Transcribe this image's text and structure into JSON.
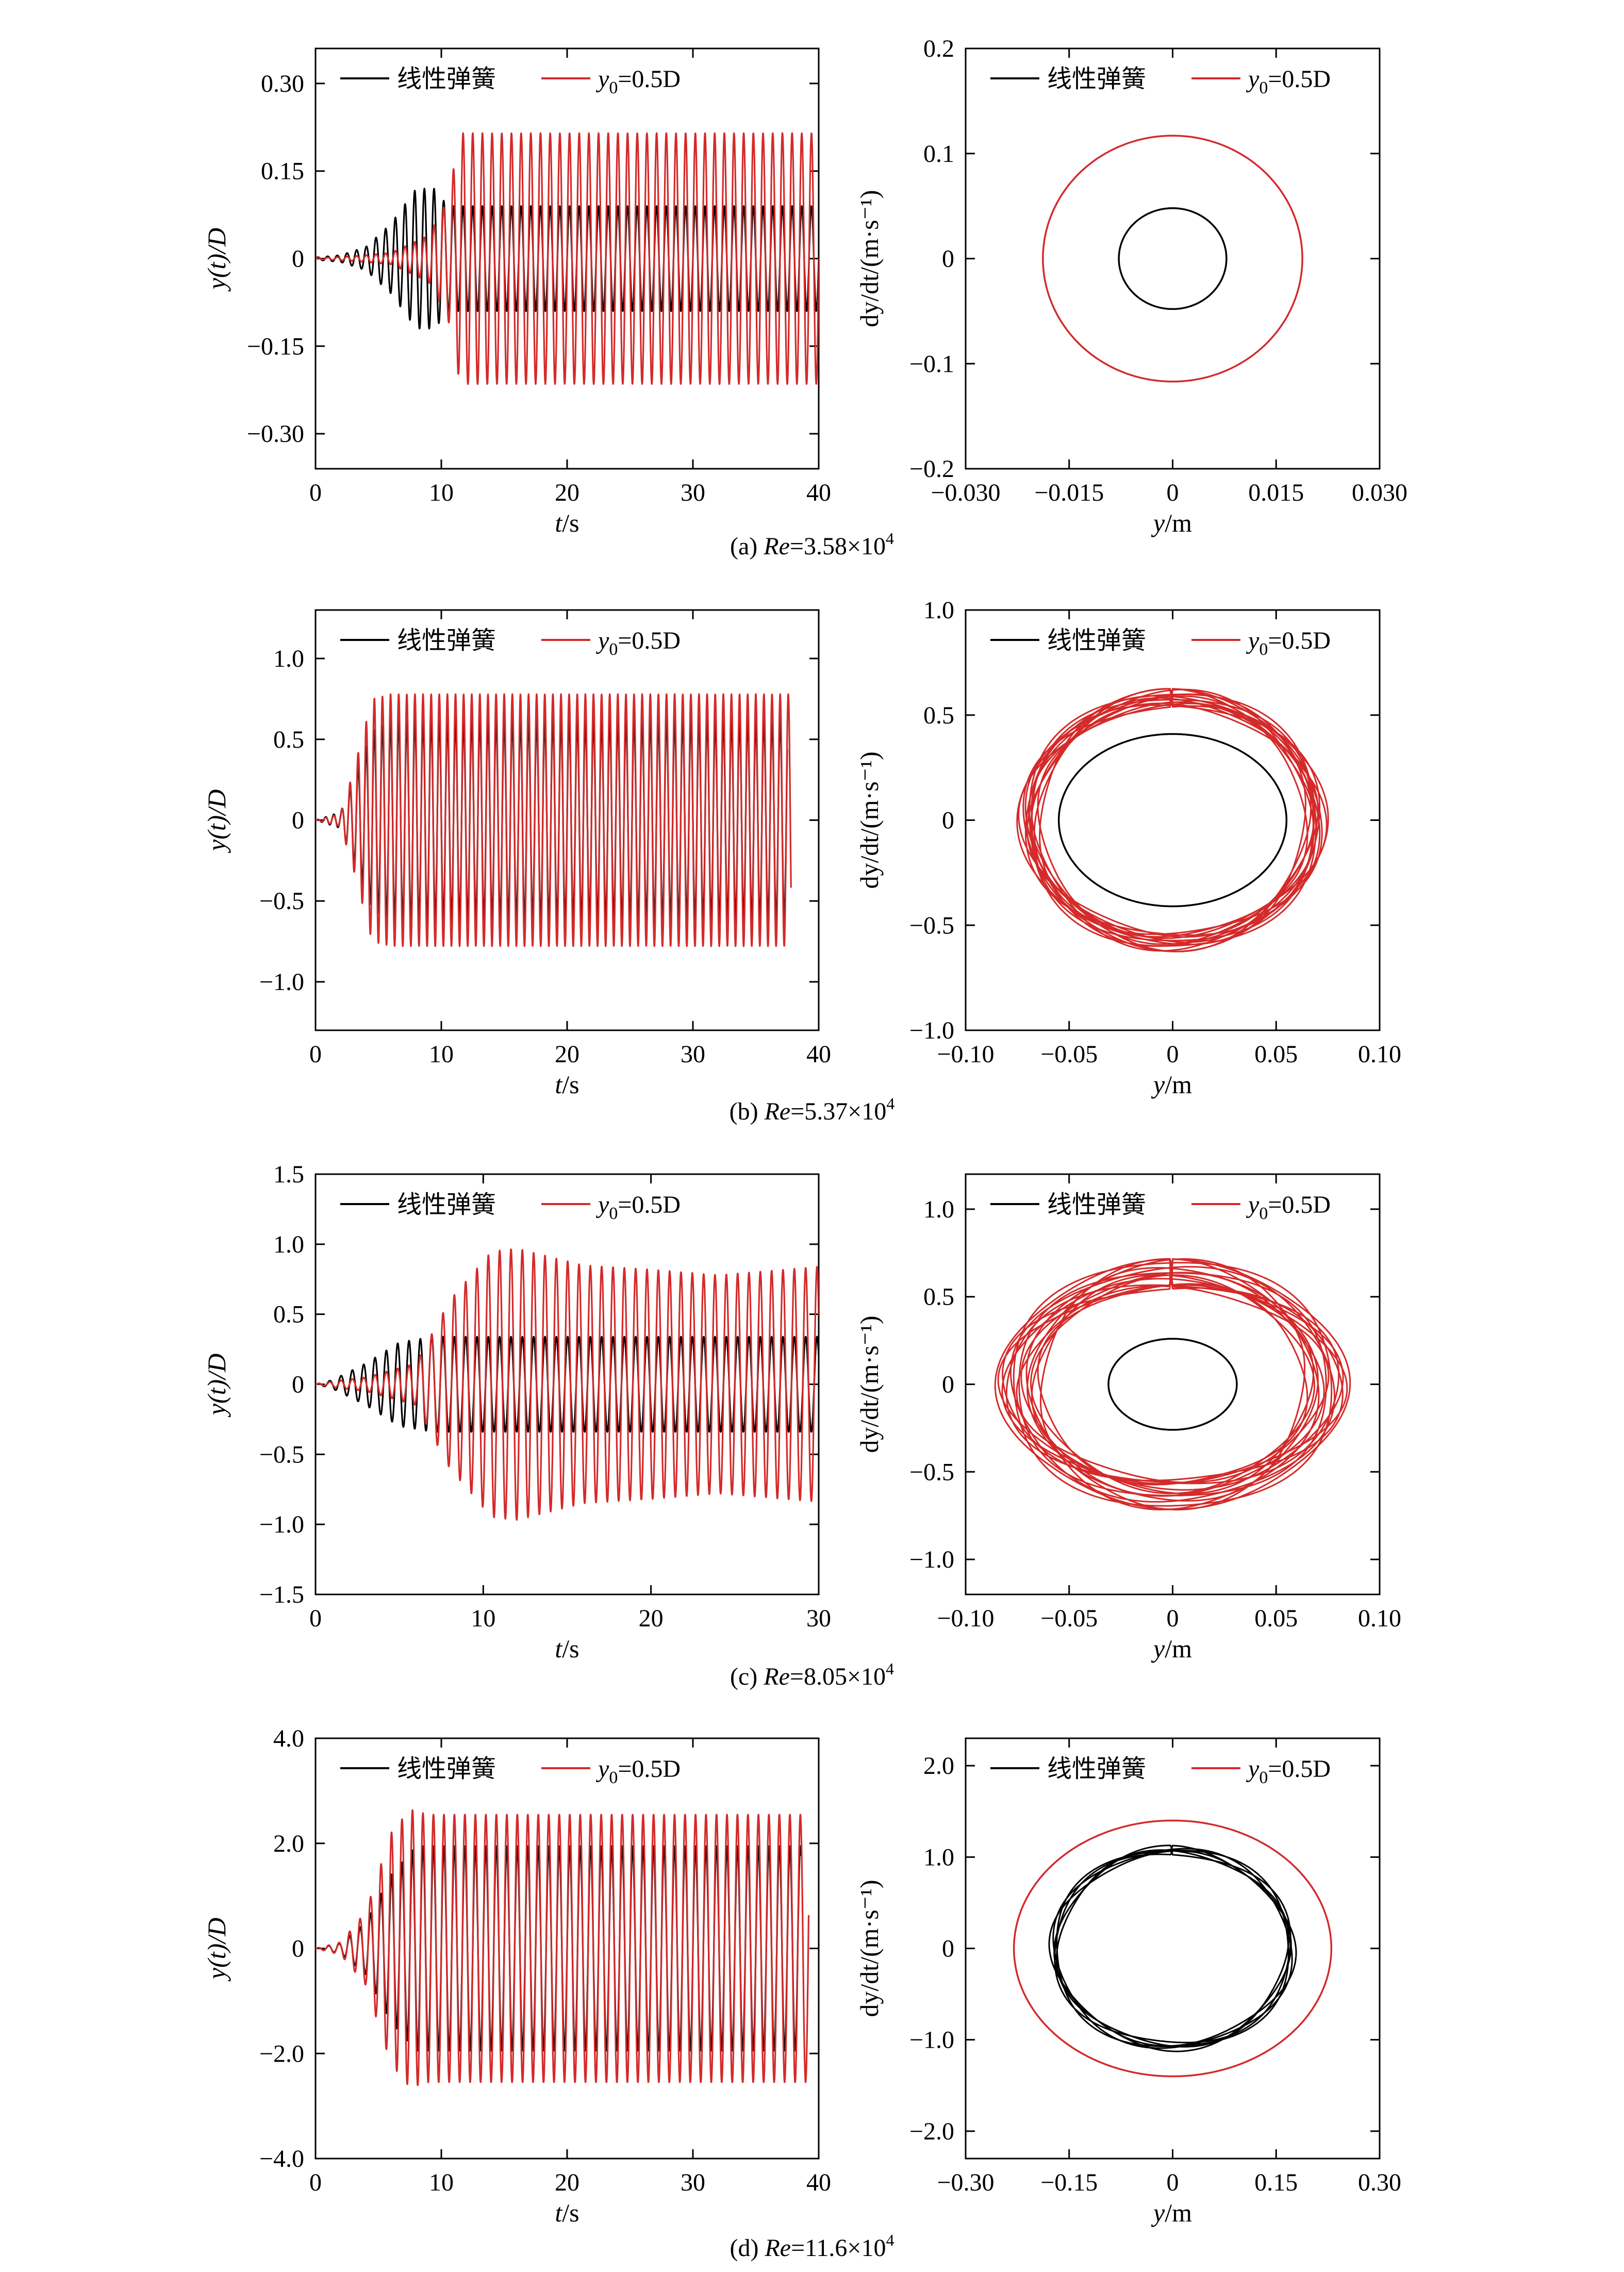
{
  "colors": {
    "linear": "#000000",
    "nonlinear": "#d42a2a",
    "axis": "#000000"
  },
  "legend": {
    "linear_label": "线性弹簧",
    "nonlinear_prefix": "y",
    "nonlinear_sub": "0",
    "nonlinear_suffix": "=0.5D"
  },
  "panels": [
    {
      "caption": {
        "prefix": "(a) ",
        "re": "Re",
        "value": "=3.58×10",
        "exp": "4"
      },
      "time": {
        "xlabel_var": "t",
        "xlabel_unit": "/s",
        "ylabel": "y(t)/D",
        "xlim": [
          0,
          40
        ],
        "ylim": [
          -0.36,
          0.36
        ],
        "xticks": [
          0,
          10,
          20,
          30,
          40
        ],
        "xtick_labels": [
          "0",
          "10",
          "20",
          "30",
          "40"
        ],
        "yticks": [
          -0.3,
          -0.15,
          0,
          0.15,
          0.3
        ],
        "ytick_labels": [
          "−0.30",
          "−0.15",
          "0",
          "0.15",
          "0.30"
        ]
      },
      "phase": {
        "xlabel_var": "y",
        "xlabel_unit": "/m",
        "ylabel": "dy/dt/(m·s⁻¹)",
        "xlim": [
          -0.03,
          0.03
        ],
        "ylim": [
          -0.2,
          0.2
        ],
        "xticks": [
          -0.03,
          -0.015,
          0,
          0.015,
          0.03
        ],
        "xtick_labels": [
          "−0.030",
          "−0.015",
          "0",
          "0.015",
          "0.030"
        ],
        "yticks": [
          -0.2,
          -0.1,
          0,
          0.1,
          0.2
        ],
        "ytick_labels": [
          "−0.2",
          "−0.1",
          "0",
          "0.1",
          "0.2"
        ]
      }
    },
    {
      "caption": {
        "prefix": "(b) ",
        "re": "Re",
        "value": "=5.37×10",
        "exp": "4"
      },
      "time": {
        "xlabel_var": "t",
        "xlabel_unit": "/s",
        "ylabel": "y(t)/D",
        "xlim": [
          0,
          40
        ],
        "ylim": [
          -1.3,
          1.3
        ],
        "xticks": [
          0,
          10,
          20,
          30,
          40
        ],
        "xtick_labels": [
          "0",
          "10",
          "20",
          "30",
          "40"
        ],
        "yticks": [
          -1.0,
          -0.5,
          0,
          0.5,
          1.0
        ],
        "ytick_labels": [
          "−1.0",
          "−0.5",
          "0",
          "0.5",
          "1.0"
        ]
      },
      "phase": {
        "xlabel_var": "y",
        "xlabel_unit": "/m",
        "ylabel": "dy/dt/(m·s⁻¹)",
        "xlim": [
          -0.1,
          0.1
        ],
        "ylim": [
          -1.0,
          1.0
        ],
        "xticks": [
          -0.1,
          -0.05,
          0,
          0.05,
          0.1
        ],
        "xtick_labels": [
          "−0.10",
          "−0.05",
          "0",
          "0.05",
          "0.10"
        ],
        "yticks": [
          -1.0,
          -0.5,
          0,
          0.5,
          1.0
        ],
        "ytick_labels": [
          "−1.0",
          "−0.5",
          "0",
          "0.5",
          "1.0"
        ]
      }
    },
    {
      "caption": {
        "prefix": "(c) ",
        "re": "Re",
        "value": "=8.05×10",
        "exp": "4"
      },
      "time": {
        "xlabel_var": "t",
        "xlabel_unit": "/s",
        "ylabel": "y(t)/D",
        "xlim": [
          0,
          30
        ],
        "ylim": [
          -1.5,
          1.5
        ],
        "xticks": [
          0,
          10,
          20,
          30
        ],
        "xtick_labels": [
          "0",
          "10",
          "20",
          "30"
        ],
        "yticks": [
          -1.5,
          -1.0,
          -0.5,
          0,
          0.5,
          1.0,
          1.5
        ],
        "ytick_labels": [
          "−1.5",
          "−1.0",
          "−0.5",
          "0",
          "0.5",
          "1.0",
          "1.5"
        ]
      },
      "phase": {
        "xlabel_var": "y",
        "xlabel_unit": "/m",
        "ylabel": "dy/dt/(m·s⁻¹)",
        "xlim": [
          -0.1,
          0.1
        ],
        "ylim": [
          -1.2,
          1.2
        ],
        "xticks": [
          -0.1,
          -0.05,
          0,
          0.05,
          0.1
        ],
        "xtick_labels": [
          "−0.10",
          "−0.05",
          "0",
          "0.05",
          "0.10"
        ],
        "yticks": [
          -1.0,
          -0.5,
          0,
          0.5,
          1.0
        ],
        "ytick_labels": [
          "−1.0",
          "−0.5",
          "0",
          "0.5",
          "1.0"
        ]
      }
    },
    {
      "caption": {
        "prefix": "(d) ",
        "re": "Re",
        "value": "=11.6×10",
        "exp": "4"
      },
      "time": {
        "xlabel_var": "t",
        "xlabel_unit": "/s",
        "ylabel": "y(t)/D",
        "xlim": [
          0,
          40
        ],
        "ylim": [
          -4.0,
          4.0
        ],
        "xticks": [
          0,
          10,
          20,
          30,
          40
        ],
        "xtick_labels": [
          "0",
          "10",
          "20",
          "30",
          "40"
        ],
        "yticks": [
          -4.0,
          -2.0,
          0,
          2.0,
          4.0
        ],
        "ytick_labels": [
          "−4.0",
          "−2.0",
          "0",
          "2.0",
          "4.0"
        ]
      },
      "phase": {
        "xlabel_var": "y",
        "xlabel_unit": "/m",
        "ylabel": "dy/dt/(m·s⁻¹)",
        "xlim": [
          -0.3,
          0.3
        ],
        "ylim": [
          -2.3,
          2.3
        ],
        "xticks": [
          -0.3,
          -0.15,
          0,
          0.15,
          0.3
        ],
        "xtick_labels": [
          "−0.30",
          "−0.15",
          "0",
          "0.15",
          "0.30"
        ],
        "yticks": [
          -2.0,
          -1.0,
          0,
          1.0,
          2.0
        ],
        "ytick_labels": [
          "−2.0",
          "−1.0",
          "0",
          "1.0",
          "2.0"
        ]
      }
    }
  ],
  "chart_data": [
    {
      "type": "line",
      "panel": "a-time",
      "xlabel": "t/s",
      "ylabel": "y(t)/D",
      "xlim": [
        0,
        40
      ],
      "ylim": [
        -0.36,
        0.36
      ],
      "grid": false,
      "legend": "top-left",
      "series": [
        {
          "name": "线性弹簧",
          "frequency_hz": 1.3,
          "duration_s": 40,
          "envelope_t": [
            0,
            2,
            4,
            6,
            8,
            9.5,
            10.5,
            40
          ],
          "envelope_amp": [
            0.002,
            0.006,
            0.02,
            0.06,
            0.12,
            0.12,
            0.09,
            0.09
          ]
        },
        {
          "name": "y0=0.5D",
          "frequency_hz": 1.3,
          "duration_s": 40,
          "envelope_t": [
            0,
            3,
            6,
            9,
            10.5,
            11.5,
            40
          ],
          "envelope_amp": [
            0.001,
            0.004,
            0.01,
            0.04,
            0.1,
            0.215,
            0.215
          ]
        }
      ]
    },
    {
      "type": "scatter",
      "panel": "a-phase",
      "plot": "phase-portrait",
      "xlabel": "y/m",
      "ylabel": "dy/dt/(m·s⁻¹)",
      "xlim": [
        -0.03,
        0.03
      ],
      "ylim": [
        -0.2,
        0.2
      ],
      "legend": "top-left",
      "series": [
        {
          "name": "线性弹簧",
          "amp_y_m": 0.0078,
          "amp_v": 0.048,
          "loops": 1,
          "jitter": 0
        },
        {
          "name": "y0=0.5D",
          "amp_y_m": 0.0188,
          "amp_v": 0.117,
          "loops": 1,
          "jitter": 0
        }
      ]
    },
    {
      "type": "line",
      "panel": "b-time",
      "xlabel": "t/s",
      "ylabel": "y(t)/D",
      "xlim": [
        0,
        40
      ],
      "ylim": [
        -1.3,
        1.3
      ],
      "grid": false,
      "legend": "top-left",
      "series": [
        {
          "name": "线性弹簧",
          "frequency_hz": 1.55,
          "duration_s": 37.5,
          "envelope_t": [
            0,
            2,
            3,
            4.5,
            6,
            37.5
          ],
          "envelope_amp": [
            0.0,
            0.05,
            0.25,
            0.55,
            0.62,
            0.62
          ]
        },
        {
          "name": "y0=0.5D",
          "frequency_hz": 1.55,
          "duration_s": 37.8,
          "envelope_t": [
            0,
            2,
            3,
            4.5,
            6,
            37.8
          ],
          "envelope_amp": [
            0.0,
            0.04,
            0.3,
            0.75,
            0.78,
            0.78
          ]
        }
      ]
    },
    {
      "type": "scatter",
      "panel": "b-phase",
      "plot": "phase-portrait",
      "xlabel": "y/m",
      "ylabel": "dy/dt/(m·s⁻¹)",
      "xlim": [
        -0.1,
        0.1
      ],
      "ylim": [
        -1.0,
        1.0
      ],
      "legend": "top-left",
      "series": [
        {
          "name": "线性弹簧",
          "amp_y_m": 0.055,
          "amp_v": 0.41,
          "loops": 1,
          "jitter": 0
        },
        {
          "name": "y0=0.5D",
          "amp_y_m": 0.069,
          "amp_v": 0.58,
          "loops": 14,
          "jitter": 0.06
        }
      ]
    },
    {
      "type": "line",
      "panel": "c-time",
      "xlabel": "t/s",
      "ylabel": "y(t)/D",
      "xlim": [
        0,
        30
      ],
      "ylim": [
        -1.5,
        1.5
      ],
      "grid": false,
      "legend": "top-left",
      "series": [
        {
          "name": "线性弹簧",
          "frequency_hz": 1.48,
          "duration_s": 30,
          "envelope_t": [
            0,
            1,
            3,
            5,
            7,
            30
          ],
          "envelope_amp": [
            0.0,
            0.03,
            0.15,
            0.3,
            0.34,
            0.34
          ]
        },
        {
          "name": "y0=0.5D",
          "frequency_hz": 1.48,
          "duration_s": 30,
          "envelope_t": [
            0,
            1,
            3,
            6,
            8,
            10.5,
            12,
            16,
            20,
            24,
            30
          ],
          "envelope_amp": [
            0.0,
            0.02,
            0.05,
            0.15,
            0.6,
            0.95,
            0.97,
            0.85,
            0.82,
            0.78,
            0.84
          ]
        }
      ]
    },
    {
      "type": "scatter",
      "panel": "c-phase",
      "plot": "phase-portrait",
      "xlabel": "y/m",
      "ylabel": "dy/dt/(m·s⁻¹)",
      "xlim": [
        -0.1,
        0.1
      ],
      "ylim": [
        -1.2,
        1.2
      ],
      "legend": "top-left",
      "series": [
        {
          "name": "线性弹簧",
          "amp_y_m": 0.031,
          "amp_v": 0.26,
          "loops": 1,
          "jitter": 0
        },
        {
          "name": "y0=0.5D",
          "amp_y_m": 0.074,
          "amp_v": 0.63,
          "loops": 16,
          "jitter": 0.13
        }
      ]
    },
    {
      "type": "line",
      "panel": "d-time",
      "xlabel": "t/s",
      "ylabel": "y(t)/D",
      "xlim": [
        0,
        40
      ],
      "ylim": [
        -4.0,
        4.0
      ],
      "grid": false,
      "legend": "top-left",
      "series": [
        {
          "name": "线性弹簧",
          "frequency_hz": 1.2,
          "duration_s": 38.6,
          "envelope_t": [
            0,
            2,
            4,
            6,
            8,
            38.6
          ],
          "envelope_amp": [
            0.0,
            0.1,
            0.5,
            1.4,
            1.95,
            1.95
          ]
        },
        {
          "name": "y0=0.5D",
          "frequency_hz": 1.2,
          "duration_s": 39.2,
          "envelope_t": [
            0,
            2,
            4,
            6,
            7.5,
            9,
            39.2
          ],
          "envelope_amp": [
            0.0,
            0.12,
            0.7,
            2.2,
            2.65,
            2.55,
            2.55
          ]
        }
      ]
    },
    {
      "type": "scatter",
      "panel": "d-phase",
      "plot": "phase-portrait",
      "xlabel": "y/m",
      "ylabel": "dy/dt/(m·s⁻¹)",
      "xlim": [
        -0.3,
        0.3
      ],
      "ylim": [
        -2.3,
        2.3
      ],
      "legend": "top-left",
      "series": [
        {
          "name": "线性弹簧",
          "amp_y_m": 0.17,
          "amp_v": 1.07,
          "loops": 6,
          "jitter": 0.03
        },
        {
          "name": "y0=0.5D",
          "amp_y_m": 0.23,
          "amp_v": 1.4,
          "loops": 1,
          "jitter": 0
        }
      ]
    }
  ]
}
